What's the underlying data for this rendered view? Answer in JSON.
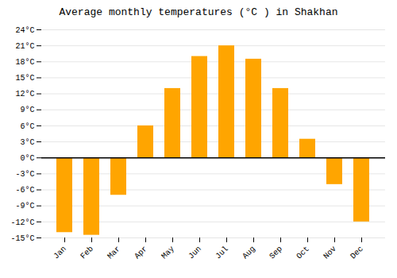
{
  "chart_data": {
    "type": "bar",
    "title": "Average monthly temperatures (°C ) in Shakhan",
    "categories": [
      "Jan",
      "Feb",
      "Mar",
      "Apr",
      "May",
      "Jun",
      "Jul",
      "Aug",
      "Sep",
      "Oct",
      "Nov",
      "Dec"
    ],
    "values": [
      -14,
      -14.5,
      -7,
      6,
      13,
      19,
      21,
      18.5,
      13,
      3.5,
      -5,
      -12
    ],
    "color": "#FFA500",
    "ylim": [
      -15,
      24
    ],
    "yticks": [
      {
        "value": -15,
        "label": "-15°C"
      },
      {
        "value": -12,
        "label": "-12°C"
      },
      {
        "value": -9,
        "label": "-9°C"
      },
      {
        "value": -6,
        "label": "-6°C"
      },
      {
        "value": -3,
        "label": "-3°C"
      },
      {
        "value": 0,
        "label": "0°C"
      },
      {
        "value": 3,
        "label": "3°C"
      },
      {
        "value": 6,
        "label": "6°C"
      },
      {
        "value": 9,
        "label": "9°C"
      },
      {
        "value": 12,
        "label": "12°C"
      },
      {
        "value": 15,
        "label": "15°C"
      },
      {
        "value": 18,
        "label": "18°C"
      },
      {
        "value": 21,
        "label": "21°C"
      },
      {
        "value": 24,
        "label": "24°C"
      }
    ],
    "grid": true
  }
}
